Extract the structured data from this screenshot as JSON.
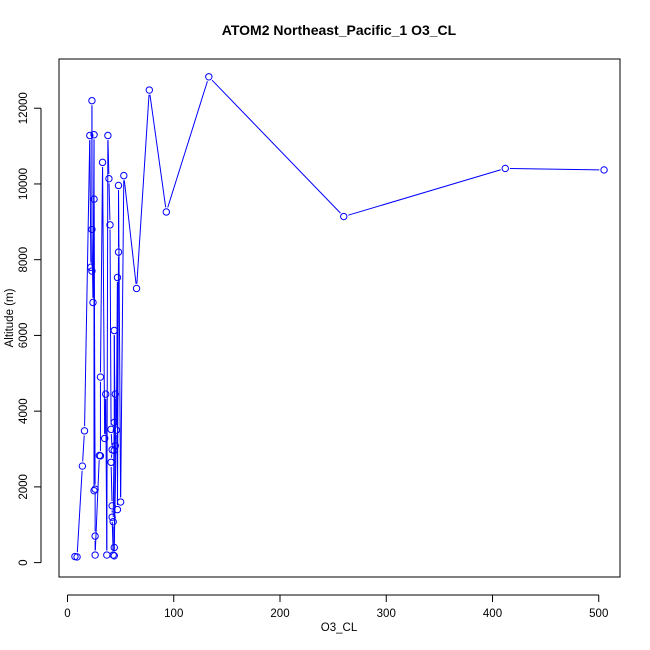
{
  "chart_data": {
    "type": "line",
    "title": "ATOM2 Northeast_Pacific_1 O3_CL",
    "xlabel": "O3_CL",
    "ylabel": "Altitude (m)",
    "xlim": [
      -8,
      520
    ],
    "ylim": [
      -380,
      13300
    ],
    "x_ticks": [
      0,
      100,
      200,
      300,
      400,
      500
    ],
    "y_ticks": [
      0,
      2000,
      4000,
      6000,
      8000,
      10000,
      12000
    ],
    "grid": false,
    "legend": "none",
    "series": [
      {
        "color": "#0000ff",
        "marker": "open-circle",
        "points": [
          [
            7,
            160
          ],
          [
            9,
            150
          ],
          [
            14,
            2550
          ],
          [
            16,
            3480
          ],
          [
            21,
            11280
          ],
          [
            22,
            7800
          ],
          [
            23,
            7700
          ],
          [
            23,
            12200
          ],
          [
            23,
            8800
          ],
          [
            24,
            6870
          ],
          [
            25,
            11300
          ],
          [
            25,
            1900
          ],
          [
            25,
            9600
          ],
          [
            26,
            1940
          ],
          [
            26,
            700
          ],
          [
            26,
            200
          ],
          [
            30,
            2830
          ],
          [
            31,
            2820
          ],
          [
            31,
            4900
          ],
          [
            33,
            10570
          ],
          [
            35,
            3280
          ],
          [
            36,
            4450
          ],
          [
            37,
            200
          ],
          [
            38,
            11280
          ],
          [
            39,
            10140
          ],
          [
            40,
            8920
          ],
          [
            41,
            3520
          ],
          [
            42,
            2980
          ],
          [
            41,
            2650
          ],
          [
            42,
            1500
          ],
          [
            42,
            1200
          ],
          [
            43,
            200
          ],
          [
            43,
            1080
          ],
          [
            44,
            3700
          ],
          [
            44,
            2960
          ],
          [
            44,
            6130
          ],
          [
            45,
            3090
          ],
          [
            45,
            4450
          ],
          [
            44,
            180
          ],
          [
            44,
            400
          ],
          [
            46,
            3500
          ],
          [
            47,
            7530
          ],
          [
            47,
            1400
          ],
          [
            48,
            8200
          ],
          [
            48,
            9960
          ],
          [
            50,
            1600
          ],
          [
            53,
            10220
          ],
          [
            65,
            7240
          ],
          [
            77,
            12480
          ],
          [
            93,
            9260
          ],
          [
            133,
            12830
          ],
          [
            260,
            9140
          ],
          [
            412,
            10410
          ],
          [
            505,
            10370
          ]
        ]
      }
    ]
  }
}
